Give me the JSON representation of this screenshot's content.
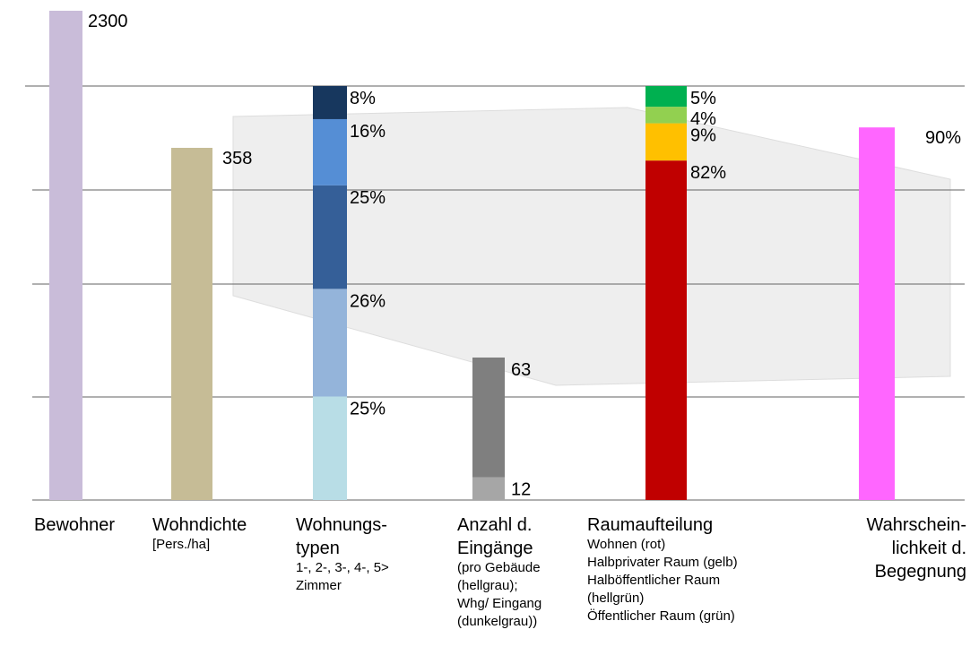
{
  "chart_data": {
    "type": "stacked-columns",
    "columns": [
      {
        "label": [
          "Bewohner"
        ],
        "sublabel": [],
        "segments": [
          {
            "value": 2300,
            "color": "#c9bcd9"
          }
        ]
      },
      {
        "label": [
          "Wohndichte"
        ],
        "sublabel": [
          "[Pers./ha]"
        ],
        "segments": [
          {
            "value": 358,
            "color": "#c6bc96"
          }
        ]
      },
      {
        "label": [
          "Wohnungs-",
          "typen"
        ],
        "sublabel": [
          "1-, 2-, 3-, 4-, 5>",
          "Zimmer"
        ],
        "segments": [
          {
            "value": 25,
            "value_label": "25%",
            "color": "#b8dde6"
          },
          {
            "value": 26,
            "value_label": "26%",
            "color": "#94b4da"
          },
          {
            "value": 25,
            "value_label": "25%",
            "color": "#355f98"
          },
          {
            "value": 16,
            "value_label": "16%",
            "color": "#558ed5"
          },
          {
            "value": 8,
            "value_label": "8%",
            "color": "#17375e"
          }
        ]
      },
      {
        "label": [
          "Anzahl d.",
          "Eingänge"
        ],
        "sublabel": [
          "(pro Gebäude",
          "(hellgrau);",
          "Whg/ Eingang",
          "(dunkelgrau))"
        ],
        "segments": [
          {
            "value": 12,
            "color": "#a6a6a6"
          },
          {
            "value": 63,
            "color": "#7f7f7f"
          }
        ]
      },
      {
        "label": [
          "Raumaufteilung"
        ],
        "sublabel": [
          "Wohnen (rot)",
          "Halbprivater Raum (gelb)",
          "Halböffentlicher Raum",
          "(hellgrün)",
          "Öffentlicher Raum (grün)"
        ],
        "segments": [
          {
            "value": 82,
            "value_label": "82%",
            "color": "#c00000"
          },
          {
            "value": 9,
            "value_label": "9%",
            "color": "#ffc000"
          },
          {
            "value": 4,
            "value_label": "4%",
            "color": "#92d050"
          },
          {
            "value": 5,
            "value_label": "5%",
            "color": "#00b050"
          }
        ]
      },
      {
        "label": [
          "Wahrschein-",
          "lichkeit d.",
          "Begegnung"
        ],
        "sublabel": [],
        "segments": [
          {
            "value": 90,
            "value_label": "90%",
            "color": "#ff66ff"
          }
        ]
      }
    ]
  }
}
